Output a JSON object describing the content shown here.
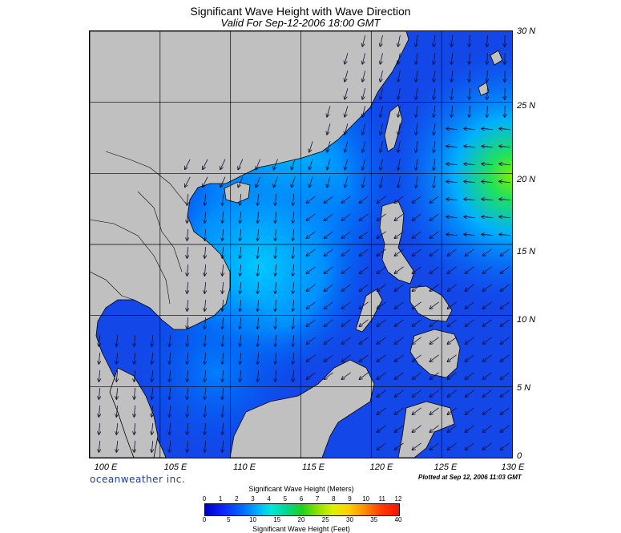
{
  "title": "Significant Wave Height with Wave Direction",
  "subtitle": "Valid For Sep-12-2006 18:00 GMT",
  "lat_labels": [
    "30 N",
    "25 N",
    "20 N",
    "15 N",
    "10 N",
    "5 N",
    "0"
  ],
  "lon_labels": [
    "100 E",
    "105 E",
    "110 E",
    "115 E",
    "120 E",
    "125 E",
    "130 E"
  ],
  "brand": "oceanweather inc.",
  "plotted_note": "Plotted at Sep 12, 2006 11:03 GMT",
  "colorbar": {
    "title_meters": "Significant Wave Height (Meters)",
    "title_feet": "Significant Wave Height (Feet)",
    "meter_ticks": [
      "0",
      "1",
      "2",
      "3",
      "4",
      "5",
      "6",
      "7",
      "8",
      "9",
      "10",
      "11",
      "12"
    ],
    "feet_ticks": [
      "0",
      "5",
      "10",
      "15",
      "20",
      "25",
      "30",
      "35",
      "40"
    ]
  },
  "map_data": {
    "lon_range": [
      100,
      130
    ],
    "lat_range": [
      0,
      30
    ],
    "grid": true,
    "land_color": "#c0c0c0",
    "sea_base_color": "#1447e8",
    "peak_wave_near": "21 N 130 E"
  }
}
